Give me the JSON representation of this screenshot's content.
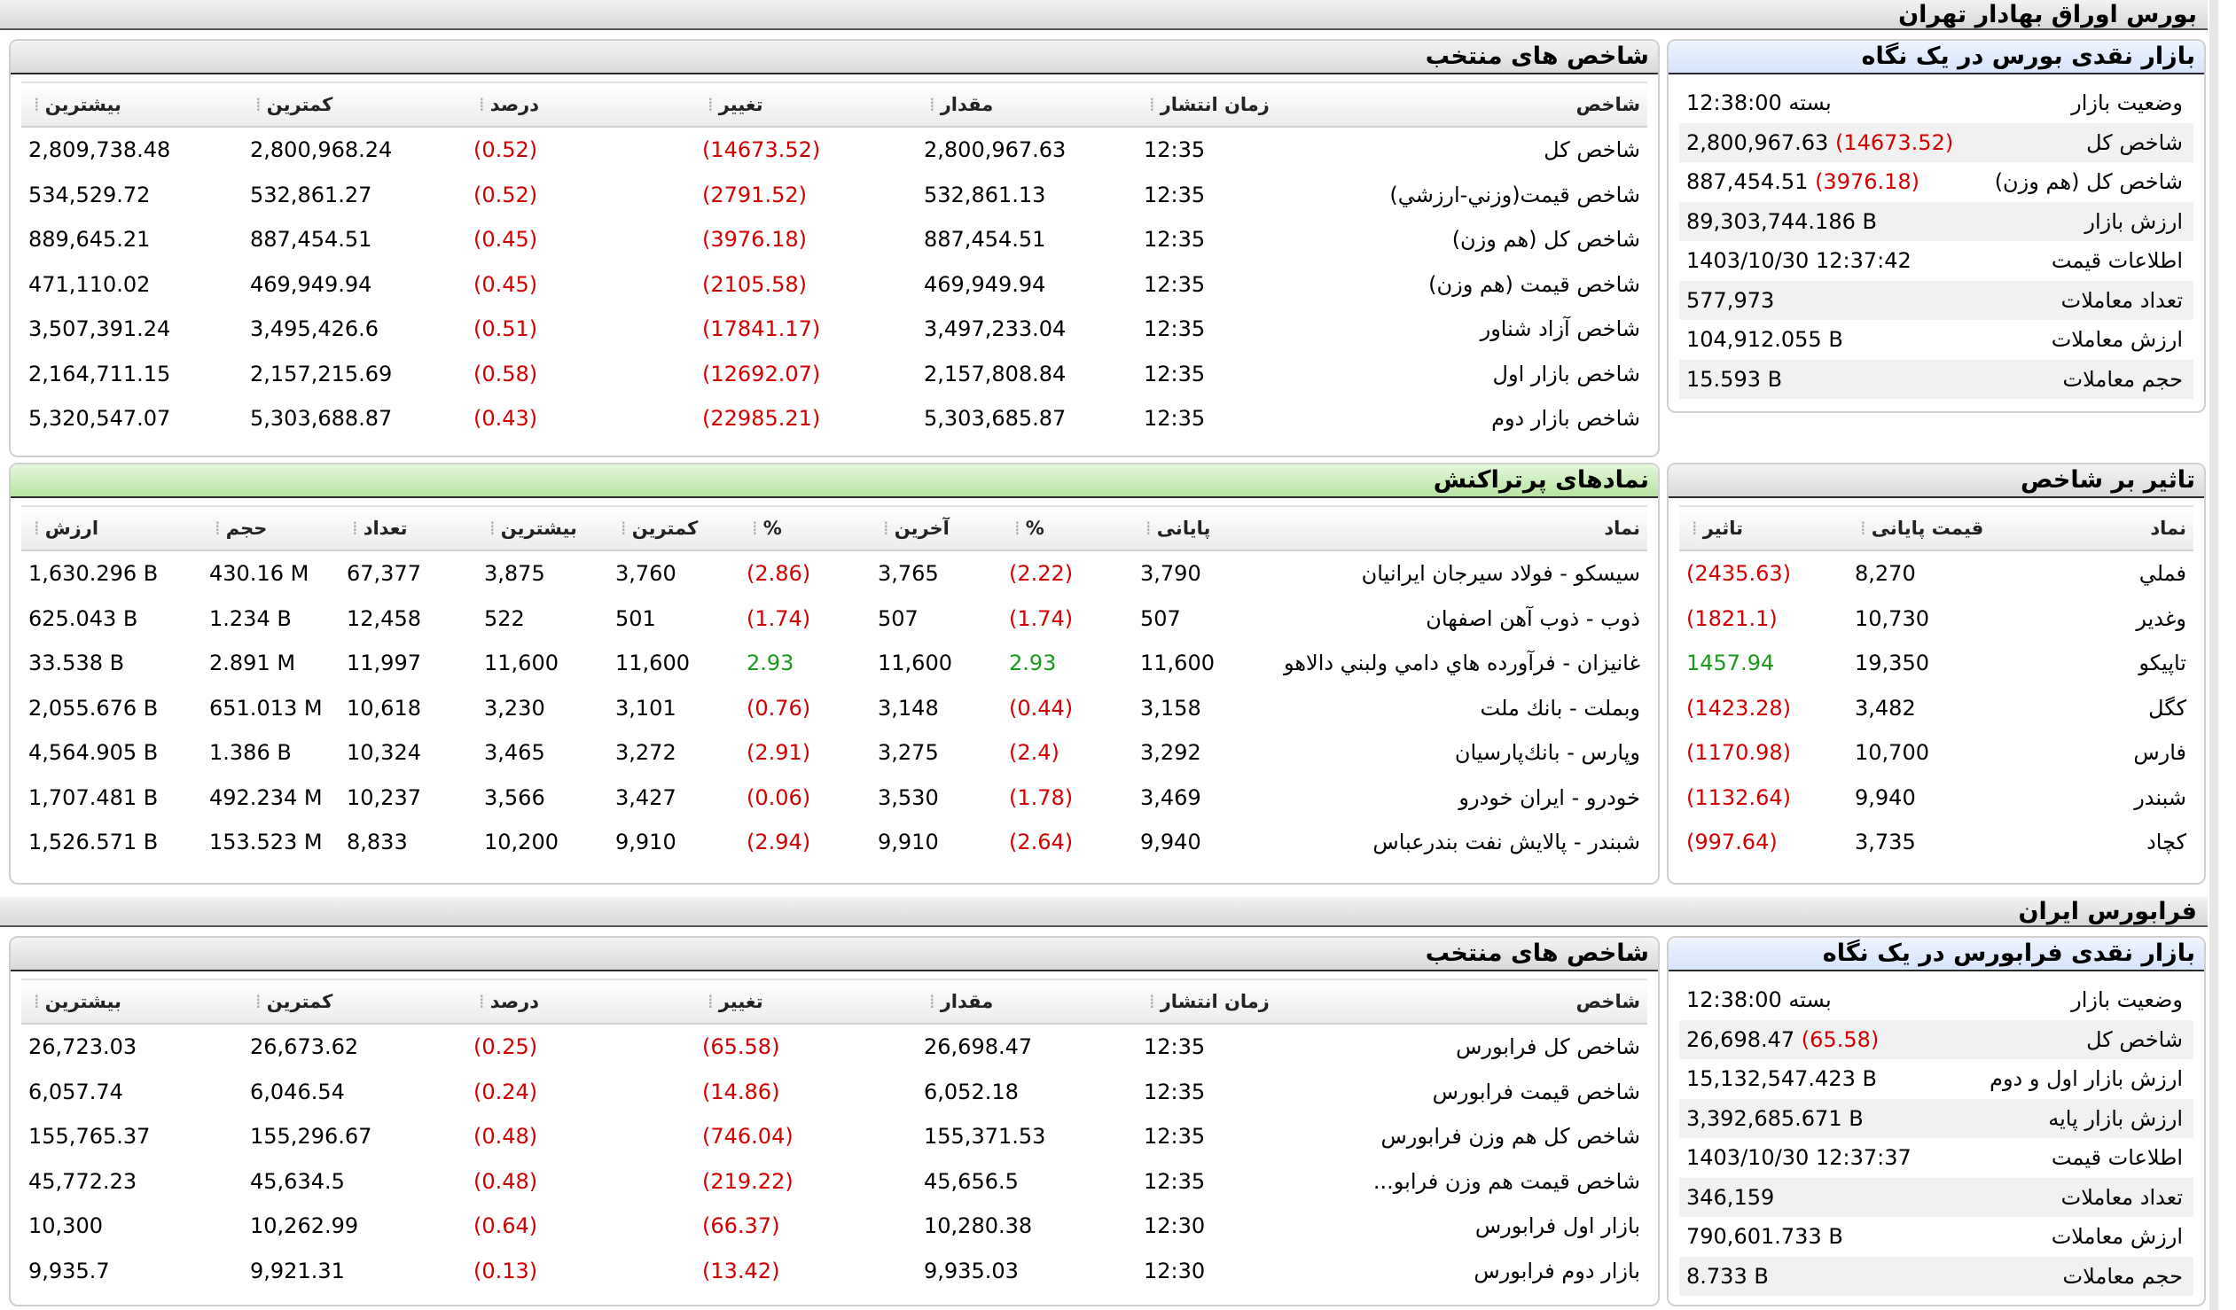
{
  "tse": {
    "section_title": "بورس اوراق بهادار تهران",
    "glance": {
      "title": "بازار نقدی بورس در یک نگاه",
      "rows": [
        {
          "label": "وضعیت بازار",
          "value": "بسته 12:38:00",
          "change": ""
        },
        {
          "label": "شاخص کل",
          "value": "2,800,967.63",
          "change": "(14673.52)"
        },
        {
          "label": "شاخص کل (هم وزن)",
          "value": "887,454.51",
          "change": "(3976.18)"
        },
        {
          "label": "ارزش بازار",
          "value": "89,303,744.186 B",
          "change": ""
        },
        {
          "label": "اطلاعات قیمت",
          "value": "1403/10/30 12:37:42",
          "change": ""
        },
        {
          "label": "تعداد معاملات",
          "value": "577,973",
          "change": ""
        },
        {
          "label": "ارزش معاملات",
          "value": "104,912.055 B",
          "change": ""
        },
        {
          "label": "حجم معاملات",
          "value": "15.593 B",
          "change": ""
        }
      ]
    },
    "indices": {
      "title": "شاخص های منتخب",
      "headers": [
        "شاخص",
        "زمان انتشار",
        "مقدار",
        "تغییر",
        "درصد",
        "کمترین",
        "بیشترین"
      ],
      "rows": [
        {
          "name": "شاخص كل",
          "time": "12:35",
          "value": "2,800,967.63",
          "change": "(14673.52)",
          "pct": "(0.52)",
          "low": "2,800,968.24",
          "high": "2,809,738.48"
        },
        {
          "name": "شاخص قيمت(وزني-ارزشي)",
          "time": "12:35",
          "value": "532,861.13",
          "change": "(2791.52)",
          "pct": "(0.52)",
          "low": "532,861.27",
          "high": "534,529.72"
        },
        {
          "name": "شاخص كل (هم وزن)",
          "time": "12:35",
          "value": "887,454.51",
          "change": "(3976.18)",
          "pct": "(0.45)",
          "low": "887,454.51",
          "high": "889,645.21"
        },
        {
          "name": "شاخص قيمت (هم وزن)",
          "time": "12:35",
          "value": "469,949.94",
          "change": "(2105.58)",
          "pct": "(0.45)",
          "low": "469,949.94",
          "high": "471,110.02"
        },
        {
          "name": "شاخص آزاد شناور",
          "time": "12:35",
          "value": "3,497,233.04",
          "change": "(17841.17)",
          "pct": "(0.51)",
          "low": "3,495,426.6",
          "high": "3,507,391.24"
        },
        {
          "name": "شاخص بازار اول",
          "time": "12:35",
          "value": "2,157,808.84",
          "change": "(12692.07)",
          "pct": "(0.58)",
          "low": "2,157,215.69",
          "high": "2,164,711.15"
        },
        {
          "name": "شاخص بازار دوم",
          "time": "12:35",
          "value": "5,303,685.87",
          "change": "(22985.21)",
          "pct": "(0.43)",
          "low": "5,303,688.87",
          "high": "5,320,547.07"
        }
      ]
    },
    "impact": {
      "title": "تاثیر بر شاخص",
      "headers": [
        "نماد",
        "قیمت پایانی",
        "تاثیر"
      ],
      "rows": [
        {
          "symbol": "فملي",
          "close": "8,270",
          "impact": "(2435.63)",
          "sign": "neg"
        },
        {
          "symbol": "وغدير",
          "close": "10,730",
          "impact": "(1821.1)",
          "sign": "neg"
        },
        {
          "symbol": "تاپيكو",
          "close": "19,350",
          "impact": "1457.94",
          "sign": "pos"
        },
        {
          "symbol": "كگل",
          "close": "3,482",
          "impact": "(1423.28)",
          "sign": "neg"
        },
        {
          "symbol": "فارس",
          "close": "10,700",
          "impact": "(1170.98)",
          "sign": "neg"
        },
        {
          "symbol": "شبندر",
          "close": "9,940",
          "impact": "(1132.64)",
          "sign": "neg"
        },
        {
          "symbol": "كچاد",
          "close": "3,735",
          "impact": "(997.64)",
          "sign": "neg"
        }
      ]
    },
    "active": {
      "title": "نمادهای پرتراکنش",
      "headers": [
        "نماد",
        "پایانی",
        "%",
        "آخرین",
        "%",
        "کمترین",
        "بیشترین",
        "تعداد",
        "حجم",
        "ارزش"
      ],
      "rows": [
        {
          "symbol": "سيسكو - فولاد سيرجان ايرانيان",
          "close": "3,790",
          "close_pct": "(2.22)",
          "last": "3,765",
          "last_pct": "(2.86)",
          "low": "3,760",
          "high": "3,875",
          "count": "67,377",
          "volume": "430.16 M",
          "value": "1,630.296 B",
          "sign": "neg"
        },
        {
          "symbol": "ذوب - ذوب آهن اصفهان",
          "close": "507",
          "close_pct": "(1.74)",
          "last": "507",
          "last_pct": "(1.74)",
          "low": "501",
          "high": "522",
          "count": "12,458",
          "volume": "1.234 B",
          "value": "625.043 B",
          "sign": "neg"
        },
        {
          "symbol": "غانيزان - فرآورده هاي دامي ولبني دالاهو",
          "close": "11,600",
          "close_pct": "2.93",
          "last": "11,600",
          "last_pct": "2.93",
          "low": "11,600",
          "high": "11,600",
          "count": "11,997",
          "volume": "2.891 M",
          "value": "33.538 B",
          "sign": "pos"
        },
        {
          "symbol": "وبملت - بانك ملت",
          "close": "3,158",
          "close_pct": "(0.44)",
          "last": "3,148",
          "last_pct": "(0.76)",
          "low": "3,101",
          "high": "3,230",
          "count": "10,618",
          "volume": "651.013 M",
          "value": "2,055.676 B",
          "sign": "neg"
        },
        {
          "symbol": "وپارس - بانك‌پارسيان",
          "close": "3,292",
          "close_pct": "(2.4)",
          "last": "3,275",
          "last_pct": "(2.91)",
          "low": "3,272",
          "high": "3,465",
          "count": "10,324",
          "volume": "1.386 B",
          "value": "4,564.905 B",
          "sign": "neg"
        },
        {
          "symbol": "خودرو - ايران‌ خودرو",
          "close": "3,469",
          "close_pct": "(1.78)",
          "last": "3,530",
          "last_pct": "(0.06)",
          "low": "3,427",
          "high": "3,566",
          "count": "10,237",
          "volume": "492.234 M",
          "value": "1,707.481 B",
          "sign": "neg"
        },
        {
          "symbol": "شبندر - پالايش نفت بندرعباس",
          "close": "9,940",
          "close_pct": "(2.64)",
          "last": "9,910",
          "last_pct": "(2.94)",
          "low": "9,910",
          "high": "10,200",
          "count": "8,833",
          "volume": "153.523 M",
          "value": "1,526.571 B",
          "sign": "neg"
        }
      ]
    }
  },
  "ifb": {
    "section_title": "فرابورس ایران",
    "glance": {
      "title": "بازار نقدی فرابورس در یک نگاه",
      "rows": [
        {
          "label": "وضعیت بازار",
          "value": "بسته 12:38:00",
          "change": ""
        },
        {
          "label": "شاخص کل",
          "value": "26,698.47",
          "change": "(65.58)"
        },
        {
          "label": "ارزش بازار اول و دوم",
          "value": "15,132,547.423 B",
          "change": ""
        },
        {
          "label": "ارزش بازار پایه",
          "value": "3,392,685.671 B",
          "change": ""
        },
        {
          "label": "اطلاعات قیمت",
          "value": "1403/10/30 12:37:37",
          "change": ""
        },
        {
          "label": "تعداد معاملات",
          "value": "346,159",
          "change": ""
        },
        {
          "label": "ارزش معاملات",
          "value": "790,601.733 B",
          "change": ""
        },
        {
          "label": "حجم معاملات",
          "value": "8.733 B",
          "change": ""
        }
      ]
    },
    "indices": {
      "title": "شاخص های منتخب",
      "headers": [
        "شاخص",
        "زمان انتشار",
        "مقدار",
        "تغییر",
        "درصد",
        "کمترین",
        "بیشترین"
      ],
      "rows": [
        {
          "name": "شاخص كل فرابورس",
          "time": "12:35",
          "value": "26,698.47",
          "change": "(65.58)",
          "pct": "(0.25)",
          "low": "26,673.62",
          "high": "26,723.03"
        },
        {
          "name": "شاخص قيمت فرابورس",
          "time": "12:35",
          "value": "6,052.18",
          "change": "(14.86)",
          "pct": "(0.24)",
          "low": "6,046.54",
          "high": "6,057.74"
        },
        {
          "name": "شاخص كل هم وزن فرابورس",
          "time": "12:35",
          "value": "155,371.53",
          "change": "(746.04)",
          "pct": "(0.48)",
          "low": "155,296.67",
          "high": "155,765.37"
        },
        {
          "name": "شاخص قیمت هم وزن فرابو...",
          "time": "12:35",
          "value": "45,656.5",
          "change": "(219.22)",
          "pct": "(0.48)",
          "low": "45,634.5",
          "high": "45,772.23"
        },
        {
          "name": "بازار اول فرابورس",
          "time": "12:30",
          "value": "10,280.38",
          "change": "(66.37)",
          "pct": "(0.64)",
          "low": "10,262.99",
          "high": "10,300"
        },
        {
          "name": "بازار دوم فرابورس",
          "time": "12:30",
          "value": "9,935.03",
          "change": "(13.42)",
          "pct": "(0.13)",
          "low": "9,921.31",
          "high": "9,935.7"
        }
      ]
    }
  }
}
